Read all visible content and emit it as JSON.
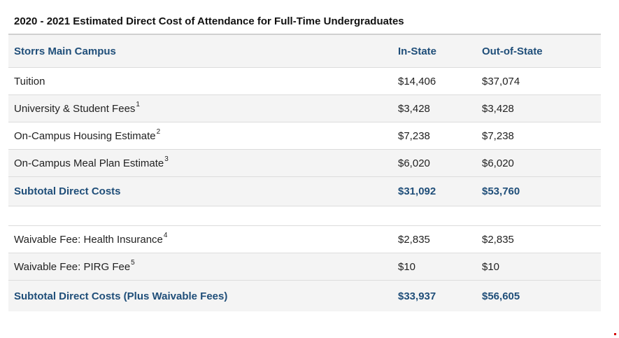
{
  "caption": "2020 - 2021 Estimated Direct Cost of Attendance for Full-Time Undergraduates",
  "header": {
    "campus": "Storrs Main Campus",
    "in_state": "In-State",
    "out_state": "Out-of-State"
  },
  "rows": [
    {
      "label": "Tuition",
      "sup": "",
      "in_state": "$14,406",
      "out_state": "$37,074"
    },
    {
      "label": "University & Student Fees",
      "sup": "1",
      "in_state": "$3,428",
      "out_state": "$3,428"
    },
    {
      "label": "On-Campus Housing Estimate",
      "sup": "2",
      "in_state": "$7,238",
      "out_state": "$7,238"
    },
    {
      "label": "On-Campus Meal Plan Estimate",
      "sup": "3",
      "in_state": "$6,020",
      "out_state": "$6,020"
    }
  ],
  "subtotal": {
    "label": "Subtotal Direct Costs",
    "in_state": "$31,092",
    "out_state": "$53,760"
  },
  "waivable_rows": [
    {
      "label": "Waivable Fee: Health Insurance",
      "sup": "4",
      "in_state": "$2,835",
      "out_state": "$2,835"
    },
    {
      "label": "Waivable Fee: PIRG Fee",
      "sup": "5",
      "in_state": "$10",
      "out_state": "$10"
    }
  ],
  "subtotal_waivable": {
    "label": "Subtotal Direct Costs (Plus Waivable Fees)",
    "in_state": "$33,937",
    "out_state": "$56,605"
  },
  "colors": {
    "header_text": "#1f4e79",
    "stripe": "#f4f4f4",
    "border": "#dcdcdc"
  }
}
